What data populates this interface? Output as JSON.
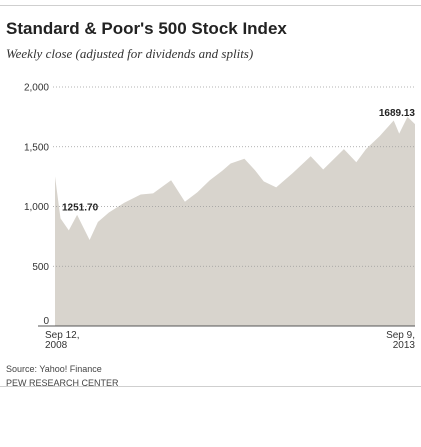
{
  "header": {
    "title": "Standard & Poor's 500 Stock Index",
    "subtitle": "Weekly close (adjusted for dividends and splits)"
  },
  "chart_data": {
    "type": "area",
    "title": "Standard & Poor's 500 Stock Index",
    "subtitle": "Weekly close (adjusted for dividends and splits)",
    "xlabel": "",
    "ylabel": "",
    "ylim": [
      0,
      2000
    ],
    "y_ticks": [
      0,
      500,
      1000,
      1500,
      2000
    ],
    "y_tick_labels": [
      "0",
      "500",
      "1,000",
      "1,500",
      "2,000"
    ],
    "grid": true,
    "fill_color": "#d8d4cd",
    "x_start_label": [
      "Sep 12,",
      "2008"
    ],
    "x_end_label": [
      "Sep 9,",
      "2013"
    ],
    "x": [
      "2008-09-12",
      "2008-10-10",
      "2008-11-21",
      "2009-01-02",
      "2009-03-06",
      "2009-04-17",
      "2009-06-12",
      "2009-08-28",
      "2009-11-20",
      "2010-01-22",
      "2010-04-23",
      "2010-07-02",
      "2010-09-03",
      "2010-11-05",
      "2011-01-07",
      "2011-02-18",
      "2011-04-29",
      "2011-06-24",
      "2011-08-05",
      "2011-10-07",
      "2011-12-30",
      "2012-03-30",
      "2012-06-01",
      "2012-09-14",
      "2012-11-16",
      "2013-01-04",
      "2013-03-15",
      "2013-05-24",
      "2013-06-21",
      "2013-08-02",
      "2013-09-09"
    ],
    "series": [
      {
        "values": [
          1251.7,
          900,
          800,
          930,
          720,
          870,
          950,
          1030,
          1100,
          1110,
          1220,
          1040,
          1120,
          1220,
          1300,
          1360,
          1400,
          1300,
          1210,
          1160,
          1280,
          1420,
          1310,
          1480,
          1370,
          1480,
          1590,
          1720,
          1610,
          1750,
          1689.13
        ]
      }
    ],
    "annotations": [
      {
        "label": "1251.70",
        "x": "2008-09-12",
        "y": 1251.7
      },
      {
        "label": "1689.13",
        "x": "2013-09-09",
        "y": 1689.13
      }
    ]
  },
  "footer": {
    "source": "Source: Yahoo! Finance",
    "org": "PEW RESEARCH CENTER"
  }
}
